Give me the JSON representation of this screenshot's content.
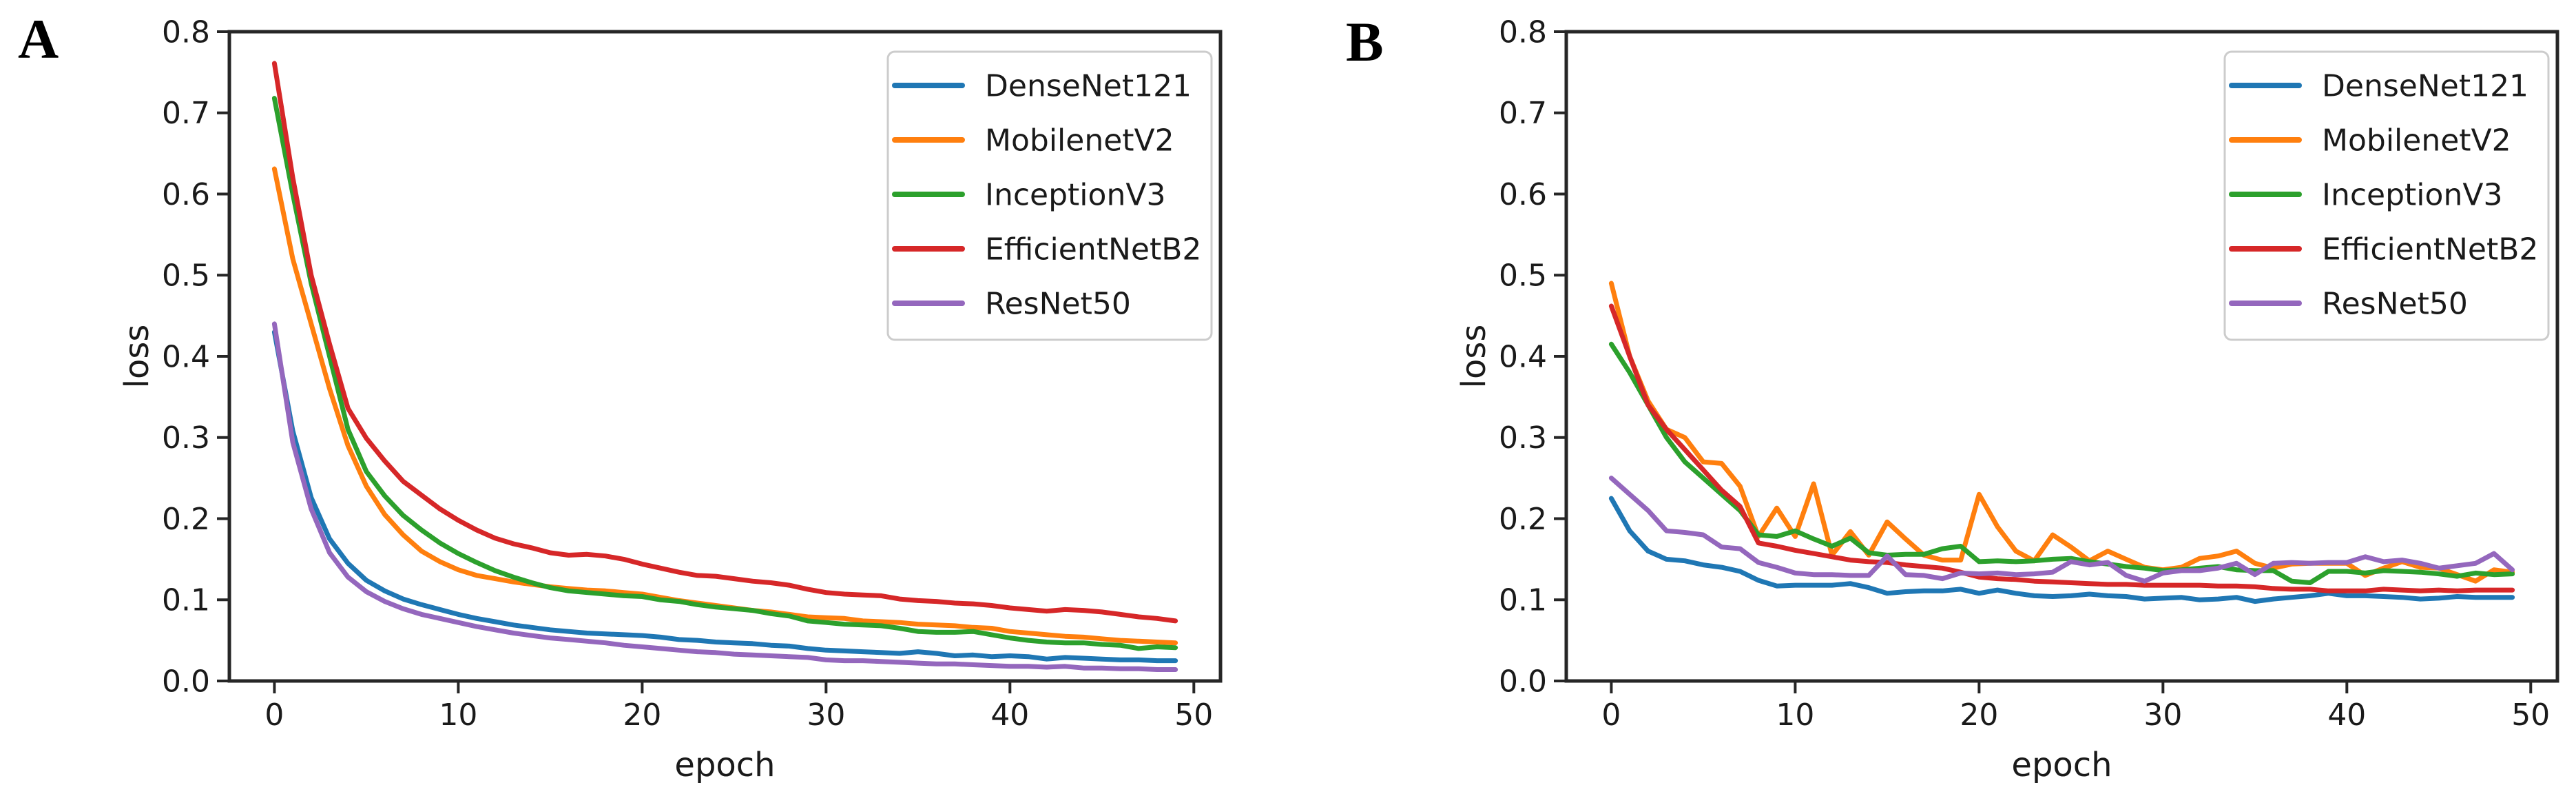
{
  "colors": {
    "background": "#ffffff",
    "text": "#1a1a1a",
    "axis": "#262626",
    "legend_border": "#cccccc"
  },
  "panels": [
    {
      "label": "A"
    },
    {
      "label": "B"
    }
  ],
  "chart_data": [
    {
      "type": "line",
      "title": "",
      "panel": "A",
      "xlabel": "epoch",
      "ylabel": "loss",
      "xlim": [
        -2.45,
        51.45
      ],
      "ylim": [
        0.0,
        0.8
      ],
      "xticks": [
        0,
        10,
        20,
        30,
        40,
        50
      ],
      "yticks": [
        0.0,
        0.1,
        0.2,
        0.3,
        0.4,
        0.5,
        0.6,
        0.7,
        0.8
      ],
      "grid": false,
      "legend_position": "upper right",
      "x": [
        0,
        1,
        2,
        3,
        4,
        5,
        6,
        7,
        8,
        9,
        10,
        11,
        12,
        13,
        14,
        15,
        16,
        17,
        18,
        19,
        20,
        21,
        22,
        23,
        24,
        25,
        26,
        27,
        28,
        29,
        30,
        31,
        32,
        33,
        34,
        35,
        36,
        37,
        38,
        39,
        40,
        41,
        42,
        43,
        44,
        45,
        46,
        47,
        48,
        49
      ],
      "series": [
        {
          "name": "DenseNet121",
          "color": "#1f77b4",
          "values": [
            0.43,
            0.308,
            0.226,
            0.175,
            0.145,
            0.124,
            0.111,
            0.101,
            0.094,
            0.088,
            0.082,
            0.077,
            0.073,
            0.069,
            0.066,
            0.063,
            0.061,
            0.059,
            0.058,
            0.057,
            0.056,
            0.054,
            0.051,
            0.05,
            0.048,
            0.047,
            0.046,
            0.044,
            0.043,
            0.04,
            0.038,
            0.037,
            0.036,
            0.035,
            0.034,
            0.036,
            0.034,
            0.031,
            0.032,
            0.03,
            0.031,
            0.03,
            0.027,
            0.029,
            0.028,
            0.027,
            0.026,
            0.026,
            0.025,
            0.025
          ]
        },
        {
          "name": "MobilenetV2",
          "color": "#ff7f0e",
          "values": [
            0.631,
            0.52,
            0.44,
            0.36,
            0.29,
            0.24,
            0.205,
            0.18,
            0.16,
            0.147,
            0.137,
            0.13,
            0.126,
            0.122,
            0.119,
            0.116,
            0.114,
            0.112,
            0.111,
            0.109,
            0.107,
            0.103,
            0.099,
            0.096,
            0.093,
            0.09,
            0.087,
            0.085,
            0.082,
            0.079,
            0.078,
            0.077,
            0.074,
            0.073,
            0.072,
            0.07,
            0.069,
            0.068,
            0.066,
            0.065,
            0.061,
            0.059,
            0.057,
            0.055,
            0.054,
            0.052,
            0.05,
            0.049,
            0.048,
            0.047
          ]
        },
        {
          "name": "InceptionV3",
          "color": "#2ca02c",
          "values": [
            0.718,
            0.6,
            0.49,
            0.4,
            0.31,
            0.258,
            0.228,
            0.204,
            0.186,
            0.17,
            0.157,
            0.146,
            0.136,
            0.128,
            0.121,
            0.115,
            0.111,
            0.109,
            0.107,
            0.105,
            0.104,
            0.1,
            0.098,
            0.094,
            0.091,
            0.089,
            0.087,
            0.083,
            0.08,
            0.074,
            0.072,
            0.07,
            0.069,
            0.068,
            0.065,
            0.061,
            0.06,
            0.06,
            0.061,
            0.057,
            0.053,
            0.05,
            0.048,
            0.047,
            0.047,
            0.045,
            0.044,
            0.04,
            0.042,
            0.041
          ]
        },
        {
          "name": "EfficientNetB2",
          "color": "#d62728",
          "values": [
            0.761,
            0.62,
            0.5,
            0.415,
            0.336,
            0.299,
            0.271,
            0.246,
            0.229,
            0.212,
            0.198,
            0.186,
            0.176,
            0.169,
            0.164,
            0.158,
            0.155,
            0.156,
            0.154,
            0.15,
            0.144,
            0.139,
            0.134,
            0.13,
            0.129,
            0.126,
            0.123,
            0.121,
            0.118,
            0.113,
            0.109,
            0.107,
            0.106,
            0.105,
            0.101,
            0.099,
            0.098,
            0.096,
            0.095,
            0.093,
            0.09,
            0.088,
            0.086,
            0.088,
            0.087,
            0.085,
            0.082,
            0.079,
            0.077,
            0.074
          ]
        },
        {
          "name": "ResNet50",
          "color": "#9467bd",
          "values": [
            0.44,
            0.294,
            0.212,
            0.158,
            0.128,
            0.11,
            0.098,
            0.089,
            0.082,
            0.077,
            0.072,
            0.067,
            0.063,
            0.059,
            0.056,
            0.053,
            0.051,
            0.049,
            0.047,
            0.044,
            0.042,
            0.04,
            0.038,
            0.036,
            0.035,
            0.033,
            0.032,
            0.031,
            0.03,
            0.029,
            0.026,
            0.025,
            0.025,
            0.024,
            0.023,
            0.022,
            0.021,
            0.021,
            0.02,
            0.019,
            0.018,
            0.018,
            0.017,
            0.018,
            0.016,
            0.016,
            0.015,
            0.015,
            0.014,
            0.014
          ]
        }
      ]
    },
    {
      "type": "line",
      "title": "",
      "panel": "B",
      "xlabel": "epoch",
      "ylabel": "loss",
      "xlim": [
        -2.45,
        51.45
      ],
      "ylim": [
        0.0,
        0.8
      ],
      "xticks": [
        0,
        10,
        20,
        30,
        40,
        50
      ],
      "yticks": [
        0.0,
        0.1,
        0.2,
        0.3,
        0.4,
        0.5,
        0.6,
        0.7,
        0.8
      ],
      "grid": false,
      "legend_position": "upper right",
      "x": [
        0,
        1,
        2,
        3,
        4,
        5,
        6,
        7,
        8,
        9,
        10,
        11,
        12,
        13,
        14,
        15,
        16,
        17,
        18,
        19,
        20,
        21,
        22,
        23,
        24,
        25,
        26,
        27,
        28,
        29,
        30,
        31,
        32,
        33,
        34,
        35,
        36,
        37,
        38,
        39,
        40,
        41,
        42,
        43,
        44,
        45,
        46,
        47,
        48,
        49
      ],
      "series": [
        {
          "name": "DenseNet121",
          "color": "#1f77b4",
          "values": [
            0.225,
            0.185,
            0.16,
            0.15,
            0.148,
            0.143,
            0.14,
            0.135,
            0.124,
            0.117,
            0.118,
            0.118,
            0.118,
            0.12,
            0.115,
            0.108,
            0.11,
            0.111,
            0.111,
            0.113,
            0.108,
            0.112,
            0.108,
            0.105,
            0.104,
            0.105,
            0.107,
            0.105,
            0.104,
            0.101,
            0.102,
            0.103,
            0.1,
            0.101,
            0.103,
            0.098,
            0.101,
            0.103,
            0.105,
            0.108,
            0.105,
            0.105,
            0.104,
            0.103,
            0.101,
            0.102,
            0.104,
            0.103,
            0.103,
            0.103
          ]
        },
        {
          "name": "MobilenetV2",
          "color": "#ff7f0e",
          "values": [
            0.49,
            0.4,
            0.345,
            0.31,
            0.3,
            0.27,
            0.268,
            0.24,
            0.178,
            0.213,
            0.178,
            0.243,
            0.155,
            0.184,
            0.155,
            0.196,
            0.175,
            0.155,
            0.149,
            0.149,
            0.23,
            0.19,
            0.16,
            0.148,
            0.18,
            0.165,
            0.148,
            0.16,
            0.15,
            0.14,
            0.137,
            0.14,
            0.151,
            0.154,
            0.16,
            0.145,
            0.139,
            0.144,
            0.145,
            0.145,
            0.145,
            0.13,
            0.139,
            0.147,
            0.14,
            0.139,
            0.131,
            0.123,
            0.137,
            0.134
          ]
        },
        {
          "name": "InceptionV3",
          "color": "#2ca02c",
          "values": [
            0.415,
            0.38,
            0.34,
            0.3,
            0.27,
            0.25,
            0.23,
            0.21,
            0.18,
            0.178,
            0.185,
            0.175,
            0.166,
            0.176,
            0.158,
            0.155,
            0.156,
            0.156,
            0.163,
            0.166,
            0.147,
            0.148,
            0.147,
            0.148,
            0.15,
            0.151,
            0.147,
            0.144,
            0.141,
            0.139,
            0.136,
            0.137,
            0.139,
            0.141,
            0.137,
            0.136,
            0.136,
            0.123,
            0.121,
            0.135,
            0.135,
            0.133,
            0.136,
            0.135,
            0.134,
            0.132,
            0.129,
            0.133,
            0.131,
            0.132
          ]
        },
        {
          "name": "EfficientNetB2",
          "color": "#d62728",
          "values": [
            0.462,
            0.4,
            0.34,
            0.31,
            0.285,
            0.26,
            0.235,
            0.215,
            0.17,
            0.166,
            0.161,
            0.157,
            0.153,
            0.149,
            0.147,
            0.146,
            0.143,
            0.141,
            0.139,
            0.134,
            0.128,
            0.126,
            0.125,
            0.123,
            0.122,
            0.121,
            0.12,
            0.119,
            0.119,
            0.118,
            0.118,
            0.118,
            0.118,
            0.117,
            0.117,
            0.116,
            0.114,
            0.113,
            0.113,
            0.111,
            0.111,
            0.111,
            0.113,
            0.112,
            0.111,
            0.112,
            0.111,
            0.112,
            0.112,
            0.112
          ]
        },
        {
          "name": "ResNet50",
          "color": "#9467bd",
          "values": [
            0.25,
            0.23,
            0.21,
            0.185,
            0.183,
            0.18,
            0.165,
            0.163,
            0.146,
            0.14,
            0.133,
            0.131,
            0.131,
            0.13,
            0.13,
            0.154,
            0.131,
            0.13,
            0.126,
            0.133,
            0.132,
            0.133,
            0.131,
            0.132,
            0.134,
            0.147,
            0.143,
            0.146,
            0.13,
            0.123,
            0.133,
            0.136,
            0.136,
            0.139,
            0.145,
            0.131,
            0.145,
            0.146,
            0.145,
            0.146,
            0.146,
            0.153,
            0.147,
            0.149,
            0.145,
            0.139,
            0.142,
            0.145,
            0.157,
            0.137
          ]
        }
      ]
    }
  ]
}
